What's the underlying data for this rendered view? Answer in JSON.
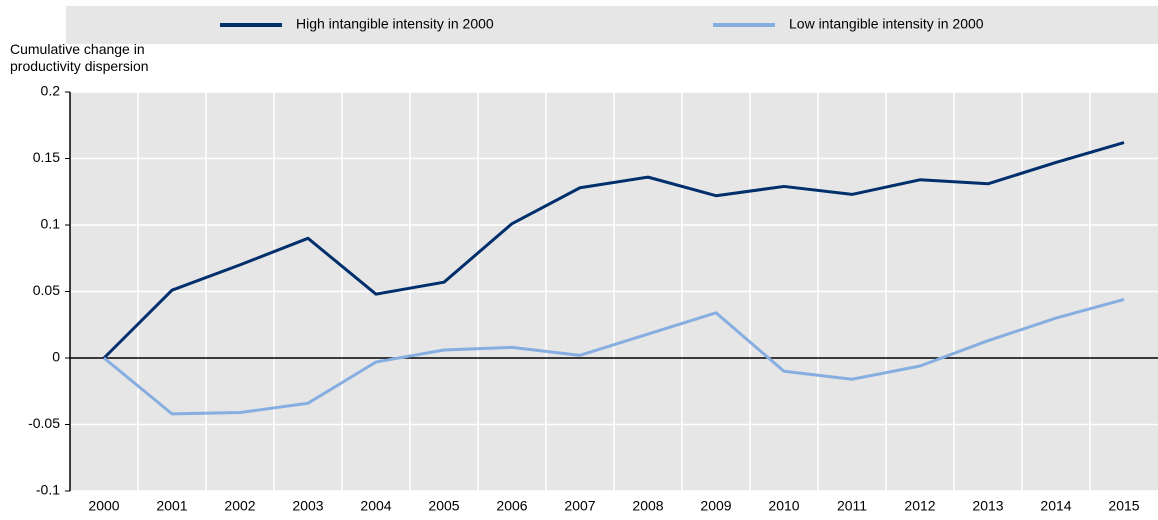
{
  "chart_data": {
    "type": "line",
    "y_label": "Cumulative change in productivity dispersion",
    "categories": [
      "2000",
      "2001",
      "2002",
      "2003",
      "2004",
      "2005",
      "2006",
      "2007",
      "2008",
      "2009",
      "2010",
      "2011",
      "2012",
      "2013",
      "2014",
      "2015"
    ],
    "series": [
      {
        "name": "High intangible intensity in 2000",
        "color": "#002f6c",
        "values": [
          0,
          0.051,
          0.07,
          0.09,
          0.048,
          0.057,
          0.101,
          0.128,
          0.136,
          0.122,
          0.129,
          0.123,
          0.134,
          0.131,
          0.147,
          0.162
        ]
      },
      {
        "name": "Low intangible intensity in 2000",
        "color": "#86aee0",
        "values": [
          0,
          -0.042,
          -0.041,
          -0.034,
          -0.003,
          0.006,
          0.008,
          0.002,
          0.018,
          0.034,
          -0.01,
          -0.016,
          -0.006,
          0.013,
          0.03,
          0.044
        ]
      }
    ],
    "ylim": [
      -0.1,
      0.2
    ],
    "yticks": [
      0.2,
      0.15,
      0.1,
      0.05,
      0,
      -0.05,
      -0.1
    ],
    "grid": true,
    "legend": "top"
  }
}
